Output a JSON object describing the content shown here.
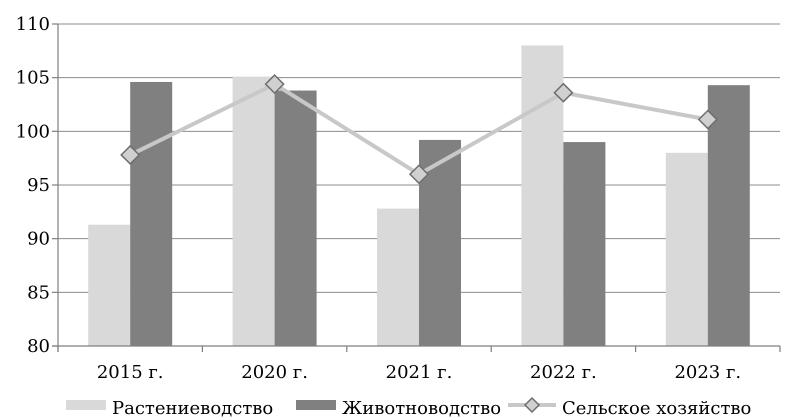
{
  "chart_data": {
    "type": "bar",
    "categories": [
      "2015 г.",
      "2020 г.",
      "2021 г.",
      "2022 г.",
      "2023 г."
    ],
    "series": [
      {
        "name": "Растениеводство",
        "kind": "bar",
        "color": "#d9d9d9",
        "values": [
          91.3,
          105.1,
          92.8,
          108.0,
          98.0
        ]
      },
      {
        "name": "Животноводство",
        "kind": "bar",
        "color": "#808080",
        "values": [
          104.6,
          103.8,
          99.2,
          99.0,
          104.3
        ]
      },
      {
        "name": "Сельское хозяйство",
        "kind": "line",
        "color": "#c8c8c8",
        "marker": "diamond",
        "values": [
          97.8,
          104.4,
          96.0,
          103.6,
          101.1
        ]
      }
    ],
    "ylim": [
      80,
      110
    ],
    "yticks": [
      80,
      85,
      90,
      95,
      100,
      105,
      110
    ],
    "grid": true,
    "legend_position": "bottom",
    "title": "",
    "xlabel": "",
    "ylabel": ""
  }
}
